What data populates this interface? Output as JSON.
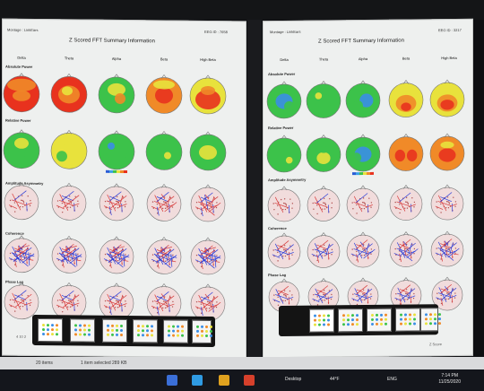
{
  "left_panel": {
    "montage": "Montage : LinkEars",
    "eeg_id": "EEG ID : 7658",
    "title": "Z Scored FFT Summary Information",
    "bands": [
      "Delta",
      "Theta",
      "Alpha",
      "Beta",
      "High Beta"
    ],
    "rows": [
      "Absolute Power",
      "Relative Power",
      "Amplitude Asymmetry",
      "Coherence",
      "Phase Lag"
    ],
    "footer_left": "4 10 2"
  },
  "right_panel": {
    "montage": "Montage : LinkEars",
    "eeg_id": "EEG ID : 3217",
    "title": "Z Scored FFT Summary Information",
    "bands": [
      "Delta",
      "Theta",
      "Alpha",
      "Beta",
      "High Beta"
    ],
    "rows": [
      "Absolute Power",
      "Relative Power",
      "Amplitude Asymmetry",
      "Coherence",
      "Phase Lag"
    ],
    "footer_right": "Z Score"
  },
  "status_bar": {
    "items_count": "20 items",
    "selection": "1 item selected  289 KB"
  },
  "taskbar": {
    "desktop_label": "Desktop",
    "temperature": "44°F",
    "language": "ENG",
    "time": "7:14 PM",
    "date": "11/25/2020"
  },
  "colors": {
    "zscore_red": "#e8321e",
    "zscore_orange": "#f08a28",
    "zscore_yellow": "#e8e23c",
    "zscore_green": "#3cc24a",
    "zscore_blue": "#3a8ee6",
    "line_red": "#d83a3a",
    "line_blue": "#2a3cd8"
  }
}
